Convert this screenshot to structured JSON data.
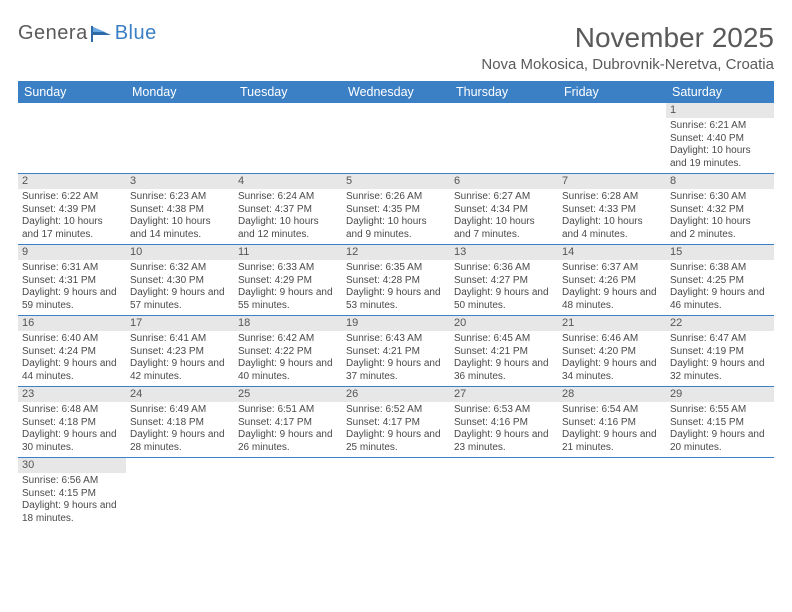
{
  "logo": {
    "text1": "Genera",
    "text2": "Blue"
  },
  "header": {
    "month_title": "November 2025",
    "location": "Nova Mokosica, Dubrovnik-Neretva, Croatia"
  },
  "colors": {
    "header_bar": "#3b7fc4",
    "daynum_bg": "#e7e7e7",
    "text": "#4a4a4a",
    "title": "#5a5a5a"
  },
  "weekdays": [
    "Sunday",
    "Monday",
    "Tuesday",
    "Wednesday",
    "Thursday",
    "Friday",
    "Saturday"
  ],
  "weeks": [
    [
      null,
      null,
      null,
      null,
      null,
      null,
      {
        "n": "1",
        "sunrise": "Sunrise: 6:21 AM",
        "sunset": "Sunset: 4:40 PM",
        "daylight": "Daylight: 10 hours and 19 minutes."
      }
    ],
    [
      {
        "n": "2",
        "sunrise": "Sunrise: 6:22 AM",
        "sunset": "Sunset: 4:39 PM",
        "daylight": "Daylight: 10 hours and 17 minutes."
      },
      {
        "n": "3",
        "sunrise": "Sunrise: 6:23 AM",
        "sunset": "Sunset: 4:38 PM",
        "daylight": "Daylight: 10 hours and 14 minutes."
      },
      {
        "n": "4",
        "sunrise": "Sunrise: 6:24 AM",
        "sunset": "Sunset: 4:37 PM",
        "daylight": "Daylight: 10 hours and 12 minutes."
      },
      {
        "n": "5",
        "sunrise": "Sunrise: 6:26 AM",
        "sunset": "Sunset: 4:35 PM",
        "daylight": "Daylight: 10 hours and 9 minutes."
      },
      {
        "n": "6",
        "sunrise": "Sunrise: 6:27 AM",
        "sunset": "Sunset: 4:34 PM",
        "daylight": "Daylight: 10 hours and 7 minutes."
      },
      {
        "n": "7",
        "sunrise": "Sunrise: 6:28 AM",
        "sunset": "Sunset: 4:33 PM",
        "daylight": "Daylight: 10 hours and 4 minutes."
      },
      {
        "n": "8",
        "sunrise": "Sunrise: 6:30 AM",
        "sunset": "Sunset: 4:32 PM",
        "daylight": "Daylight: 10 hours and 2 minutes."
      }
    ],
    [
      {
        "n": "9",
        "sunrise": "Sunrise: 6:31 AM",
        "sunset": "Sunset: 4:31 PM",
        "daylight": "Daylight: 9 hours and 59 minutes."
      },
      {
        "n": "10",
        "sunrise": "Sunrise: 6:32 AM",
        "sunset": "Sunset: 4:30 PM",
        "daylight": "Daylight: 9 hours and 57 minutes."
      },
      {
        "n": "11",
        "sunrise": "Sunrise: 6:33 AM",
        "sunset": "Sunset: 4:29 PM",
        "daylight": "Daylight: 9 hours and 55 minutes."
      },
      {
        "n": "12",
        "sunrise": "Sunrise: 6:35 AM",
        "sunset": "Sunset: 4:28 PM",
        "daylight": "Daylight: 9 hours and 53 minutes."
      },
      {
        "n": "13",
        "sunrise": "Sunrise: 6:36 AM",
        "sunset": "Sunset: 4:27 PM",
        "daylight": "Daylight: 9 hours and 50 minutes."
      },
      {
        "n": "14",
        "sunrise": "Sunrise: 6:37 AM",
        "sunset": "Sunset: 4:26 PM",
        "daylight": "Daylight: 9 hours and 48 minutes."
      },
      {
        "n": "15",
        "sunrise": "Sunrise: 6:38 AM",
        "sunset": "Sunset: 4:25 PM",
        "daylight": "Daylight: 9 hours and 46 minutes."
      }
    ],
    [
      {
        "n": "16",
        "sunrise": "Sunrise: 6:40 AM",
        "sunset": "Sunset: 4:24 PM",
        "daylight": "Daylight: 9 hours and 44 minutes."
      },
      {
        "n": "17",
        "sunrise": "Sunrise: 6:41 AM",
        "sunset": "Sunset: 4:23 PM",
        "daylight": "Daylight: 9 hours and 42 minutes."
      },
      {
        "n": "18",
        "sunrise": "Sunrise: 6:42 AM",
        "sunset": "Sunset: 4:22 PM",
        "daylight": "Daylight: 9 hours and 40 minutes."
      },
      {
        "n": "19",
        "sunrise": "Sunrise: 6:43 AM",
        "sunset": "Sunset: 4:21 PM",
        "daylight": "Daylight: 9 hours and 37 minutes."
      },
      {
        "n": "20",
        "sunrise": "Sunrise: 6:45 AM",
        "sunset": "Sunset: 4:21 PM",
        "daylight": "Daylight: 9 hours and 36 minutes."
      },
      {
        "n": "21",
        "sunrise": "Sunrise: 6:46 AM",
        "sunset": "Sunset: 4:20 PM",
        "daylight": "Daylight: 9 hours and 34 minutes."
      },
      {
        "n": "22",
        "sunrise": "Sunrise: 6:47 AM",
        "sunset": "Sunset: 4:19 PM",
        "daylight": "Daylight: 9 hours and 32 minutes."
      }
    ],
    [
      {
        "n": "23",
        "sunrise": "Sunrise: 6:48 AM",
        "sunset": "Sunset: 4:18 PM",
        "daylight": "Daylight: 9 hours and 30 minutes."
      },
      {
        "n": "24",
        "sunrise": "Sunrise: 6:49 AM",
        "sunset": "Sunset: 4:18 PM",
        "daylight": "Daylight: 9 hours and 28 minutes."
      },
      {
        "n": "25",
        "sunrise": "Sunrise: 6:51 AM",
        "sunset": "Sunset: 4:17 PM",
        "daylight": "Daylight: 9 hours and 26 minutes."
      },
      {
        "n": "26",
        "sunrise": "Sunrise: 6:52 AM",
        "sunset": "Sunset: 4:17 PM",
        "daylight": "Daylight: 9 hours and 25 minutes."
      },
      {
        "n": "27",
        "sunrise": "Sunrise: 6:53 AM",
        "sunset": "Sunset: 4:16 PM",
        "daylight": "Daylight: 9 hours and 23 minutes."
      },
      {
        "n": "28",
        "sunrise": "Sunrise: 6:54 AM",
        "sunset": "Sunset: 4:16 PM",
        "daylight": "Daylight: 9 hours and 21 minutes."
      },
      {
        "n": "29",
        "sunrise": "Sunrise: 6:55 AM",
        "sunset": "Sunset: 4:15 PM",
        "daylight": "Daylight: 9 hours and 20 minutes."
      }
    ],
    [
      {
        "n": "30",
        "sunrise": "Sunrise: 6:56 AM",
        "sunset": "Sunset: 4:15 PM",
        "daylight": "Daylight: 9 hours and 18 minutes."
      },
      null,
      null,
      null,
      null,
      null,
      null
    ]
  ]
}
